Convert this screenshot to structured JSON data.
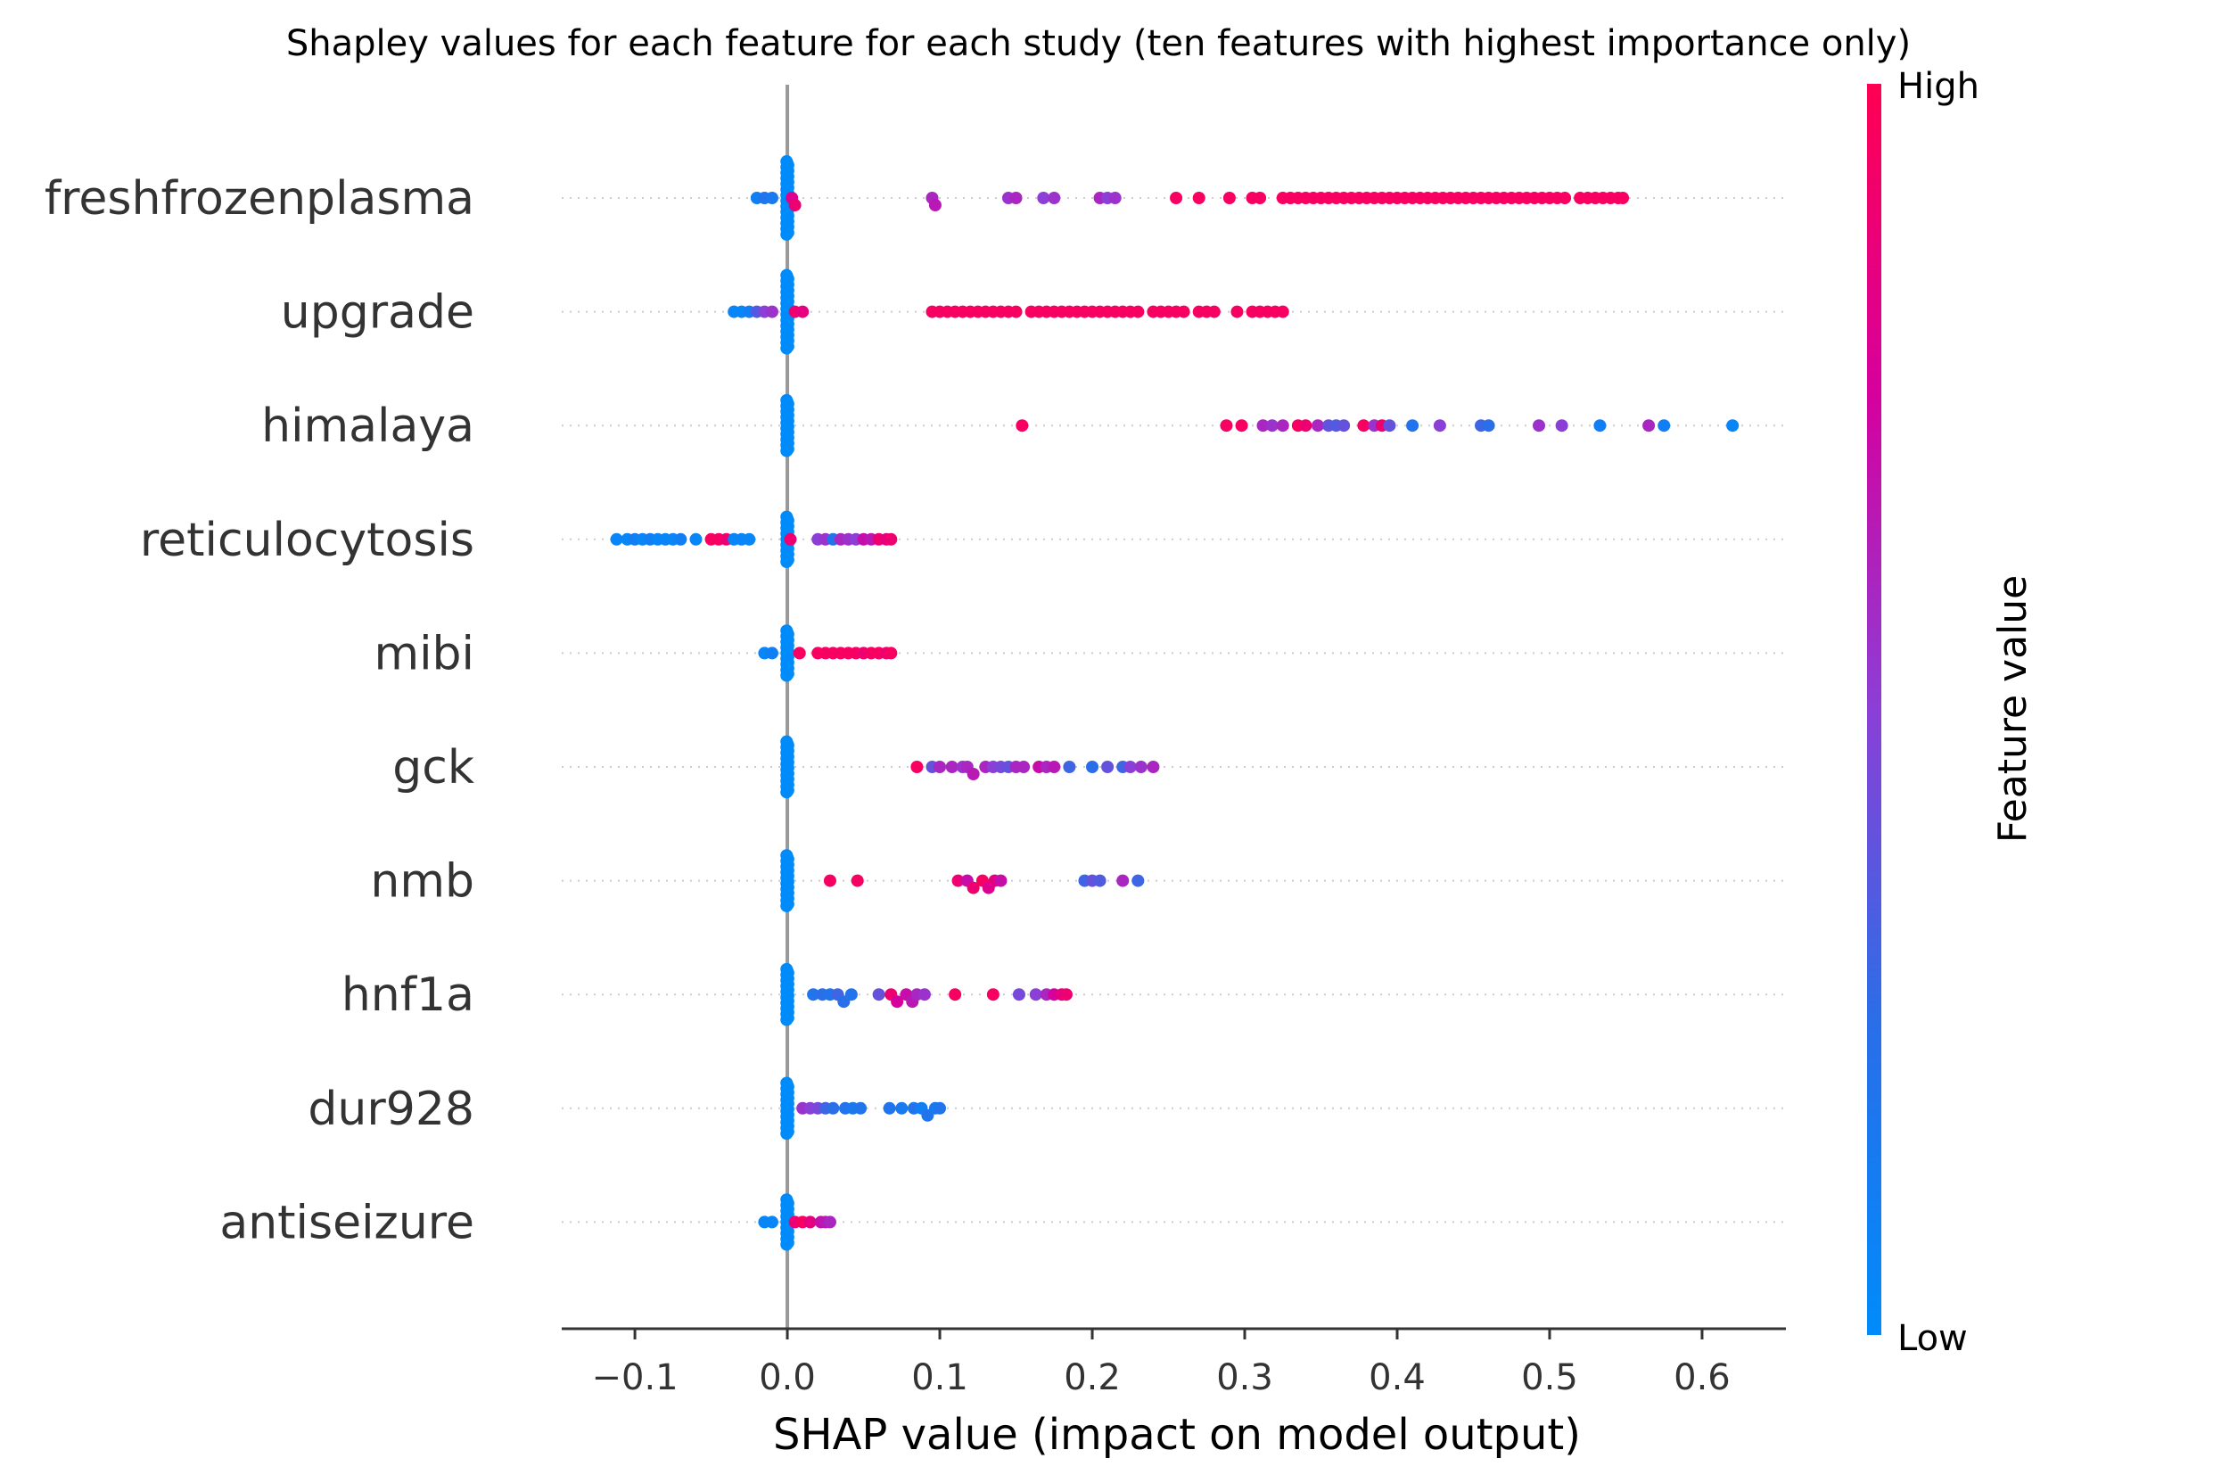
{
  "chart_data": {
    "type": "scatter",
    "subtype": "shap-beeswarm",
    "title": "Shapley values for each feature for each study (ten features with highest importance only)",
    "xlabel": "SHAP value (impact on model output)",
    "ylabel": "",
    "xlim": [
      -0.148,
      0.655
    ],
    "xticks": [
      -0.1,
      0.0,
      0.1,
      0.2,
      0.3,
      0.4,
      0.5,
      0.6
    ],
    "xtick_labels": [
      "−0.1",
      "0.0",
      "0.1",
      "0.2",
      "0.3",
      "0.4",
      "0.5",
      "0.6"
    ],
    "grid": false,
    "colorbar": {
      "label": "Feature value",
      "high_label": "High",
      "low_label": "Low",
      "low_color": "#008bfb",
      "high_color": "#ff0052"
    },
    "features": [
      {
        "name": "freshfrozenplasma",
        "zero_low_count": 40,
        "points": [
          [
            -0.02,
            0.1
          ],
          [
            -0.015,
            0.2
          ],
          [
            -0.01,
            0.15
          ],
          [
            0.003,
            0.8
          ],
          [
            0.005,
            0.9
          ],
          [
            0.095,
            0.6
          ],
          [
            0.097,
            0.65
          ],
          [
            0.145,
            0.55
          ],
          [
            0.15,
            0.6
          ],
          [
            0.168,
            0.5
          ],
          [
            0.175,
            0.55
          ],
          [
            0.205,
            0.6
          ],
          [
            0.21,
            0.5
          ],
          [
            0.215,
            0.55
          ],
          [
            0.255,
            0.95
          ],
          [
            0.27,
            0.95
          ],
          [
            0.29,
            0.95
          ],
          [
            0.305,
            0.95
          ],
          [
            0.31,
            0.95
          ],
          [
            0.325,
            0.95
          ],
          [
            0.33,
            0.95
          ],
          [
            0.335,
            0.95
          ],
          [
            0.34,
            0.95
          ],
          [
            0.345,
            0.95
          ],
          [
            0.35,
            0.95
          ],
          [
            0.355,
            0.95
          ],
          [
            0.36,
            0.95
          ],
          [
            0.365,
            0.95
          ],
          [
            0.37,
            0.95
          ],
          [
            0.375,
            0.95
          ],
          [
            0.38,
            0.95
          ],
          [
            0.385,
            0.95
          ],
          [
            0.39,
            0.95
          ],
          [
            0.395,
            0.95
          ],
          [
            0.4,
            0.95
          ],
          [
            0.405,
            0.95
          ],
          [
            0.41,
            0.95
          ],
          [
            0.415,
            0.95
          ],
          [
            0.42,
            0.95
          ],
          [
            0.425,
            0.95
          ],
          [
            0.43,
            0.95
          ],
          [
            0.435,
            0.95
          ],
          [
            0.44,
            0.95
          ],
          [
            0.445,
            0.95
          ],
          [
            0.45,
            0.95
          ],
          [
            0.455,
            0.95
          ],
          [
            0.46,
            0.95
          ],
          [
            0.465,
            0.95
          ],
          [
            0.47,
            0.95
          ],
          [
            0.475,
            0.95
          ],
          [
            0.48,
            0.95
          ],
          [
            0.485,
            0.95
          ],
          [
            0.49,
            0.95
          ],
          [
            0.495,
            0.95
          ],
          [
            0.5,
            0.95
          ],
          [
            0.505,
            0.95
          ],
          [
            0.51,
            0.95
          ],
          [
            0.52,
            0.95
          ],
          [
            0.525,
            0.95
          ],
          [
            0.53,
            0.95
          ],
          [
            0.535,
            0.95
          ],
          [
            0.54,
            0.95
          ],
          [
            0.545,
            0.95
          ],
          [
            0.548,
            0.95
          ]
        ]
      },
      {
        "name": "upgrade",
        "zero_low_count": 40,
        "points": [
          [
            -0.035,
            0.05
          ],
          [
            -0.03,
            0.05
          ],
          [
            -0.025,
            0.1
          ],
          [
            -0.02,
            0.35
          ],
          [
            -0.015,
            0.5
          ],
          [
            -0.01,
            0.55
          ],
          [
            0.005,
            0.9
          ],
          [
            0.01,
            0.85
          ],
          [
            0.095,
            0.95
          ],
          [
            0.1,
            0.95
          ],
          [
            0.105,
            0.95
          ],
          [
            0.11,
            0.95
          ],
          [
            0.115,
            0.95
          ],
          [
            0.12,
            0.95
          ],
          [
            0.125,
            0.95
          ],
          [
            0.13,
            0.95
          ],
          [
            0.135,
            0.95
          ],
          [
            0.14,
            0.95
          ],
          [
            0.145,
            0.95
          ],
          [
            0.15,
            0.95
          ],
          [
            0.16,
            0.95
          ],
          [
            0.165,
            0.95
          ],
          [
            0.17,
            0.95
          ],
          [
            0.175,
            0.95
          ],
          [
            0.18,
            0.95
          ],
          [
            0.185,
            0.95
          ],
          [
            0.19,
            0.95
          ],
          [
            0.195,
            0.95
          ],
          [
            0.2,
            0.95
          ],
          [
            0.205,
            0.95
          ],
          [
            0.21,
            0.95
          ],
          [
            0.215,
            0.95
          ],
          [
            0.22,
            0.95
          ],
          [
            0.225,
            0.95
          ],
          [
            0.23,
            0.95
          ],
          [
            0.24,
            0.95
          ],
          [
            0.245,
            0.95
          ],
          [
            0.25,
            0.95
          ],
          [
            0.255,
            0.95
          ],
          [
            0.26,
            0.95
          ],
          [
            0.27,
            0.95
          ],
          [
            0.275,
            0.95
          ],
          [
            0.28,
            0.95
          ],
          [
            0.295,
            0.95
          ],
          [
            0.305,
            0.95
          ],
          [
            0.31,
            0.95
          ],
          [
            0.315,
            0.95
          ],
          [
            0.32,
            0.95
          ],
          [
            0.325,
            0.95
          ]
        ]
      },
      {
        "name": "himalaya",
        "zero_low_count": 28,
        "points": [
          [
            0.154,
            0.95
          ],
          [
            0.288,
            0.95
          ],
          [
            0.298,
            0.95
          ],
          [
            0.312,
            0.6
          ],
          [
            0.318,
            0.55
          ],
          [
            0.325,
            0.6
          ],
          [
            0.335,
            0.95
          ],
          [
            0.34,
            0.9
          ],
          [
            0.348,
            0.6
          ],
          [
            0.355,
            0.4
          ],
          [
            0.36,
            0.35
          ],
          [
            0.365,
            0.4
          ],
          [
            0.378,
            0.95
          ],
          [
            0.385,
            0.55
          ],
          [
            0.39,
            0.9
          ],
          [
            0.395,
            0.4
          ],
          [
            0.41,
            0.2
          ],
          [
            0.428,
            0.5
          ],
          [
            0.455,
            0.3
          ],
          [
            0.46,
            0.25
          ],
          [
            0.493,
            0.55
          ],
          [
            0.508,
            0.5
          ],
          [
            0.533,
            0.1
          ],
          [
            0.565,
            0.6
          ],
          [
            0.575,
            0.1
          ],
          [
            0.62,
            0.05
          ]
        ]
      },
      {
        "name": "reticulocytosis",
        "zero_low_count": 25,
        "points": [
          [
            -0.112,
            0.05
          ],
          [
            -0.105,
            0.05
          ],
          [
            -0.1,
            0.1
          ],
          [
            -0.095,
            0.05
          ],
          [
            -0.09,
            0.1
          ],
          [
            -0.085,
            0.05
          ],
          [
            -0.08,
            0.05
          ],
          [
            -0.075,
            0.05
          ],
          [
            -0.07,
            0.1
          ],
          [
            -0.06,
            0.05
          ],
          [
            -0.05,
            0.95
          ],
          [
            -0.045,
            0.95
          ],
          [
            -0.04,
            0.9
          ],
          [
            -0.035,
            0.05
          ],
          [
            -0.03,
            0.05
          ],
          [
            -0.025,
            0.05
          ],
          [
            0.002,
            0.9
          ],
          [
            0.02,
            0.5
          ],
          [
            0.025,
            0.55
          ],
          [
            0.03,
            0.2
          ],
          [
            0.035,
            0.6
          ],
          [
            0.04,
            0.55
          ],
          [
            0.045,
            0.5
          ],
          [
            0.05,
            0.7
          ],
          [
            0.055,
            0.65
          ],
          [
            0.06,
            0.9
          ],
          [
            0.065,
            0.85
          ],
          [
            0.068,
            0.9
          ]
        ]
      },
      {
        "name": "mibi",
        "zero_low_count": 25,
        "points": [
          [
            -0.015,
            0.05
          ],
          [
            -0.01,
            0.1
          ],
          [
            0.008,
            0.95
          ],
          [
            0.02,
            0.95
          ],
          [
            0.025,
            0.95
          ],
          [
            0.03,
            0.95
          ],
          [
            0.035,
            0.95
          ],
          [
            0.04,
            0.95
          ],
          [
            0.045,
            0.95
          ],
          [
            0.05,
            0.9
          ],
          [
            0.055,
            0.95
          ],
          [
            0.06,
            0.95
          ],
          [
            0.065,
            0.9
          ],
          [
            0.068,
            0.95
          ]
        ]
      },
      {
        "name": "gck",
        "zero_low_count": 28,
        "points": [
          [
            0.085,
            0.95
          ],
          [
            0.095,
            0.4
          ],
          [
            0.1,
            0.6
          ],
          [
            0.108,
            0.6
          ],
          [
            0.115,
            0.55
          ],
          [
            0.118,
            0.6
          ],
          [
            0.122,
            0.65
          ],
          [
            0.13,
            0.6
          ],
          [
            0.135,
            0.5
          ],
          [
            0.14,
            0.45
          ],
          [
            0.145,
            0.4
          ],
          [
            0.15,
            0.6
          ],
          [
            0.155,
            0.6
          ],
          [
            0.165,
            0.7
          ],
          [
            0.17,
            0.6
          ],
          [
            0.175,
            0.65
          ],
          [
            0.185,
            0.3
          ],
          [
            0.2,
            0.25
          ],
          [
            0.21,
            0.4
          ],
          [
            0.22,
            0.3
          ],
          [
            0.225,
            0.5
          ],
          [
            0.232,
            0.55
          ],
          [
            0.24,
            0.6
          ]
        ]
      },
      {
        "name": "nmb",
        "zero_low_count": 28,
        "points": [
          [
            0.028,
            0.95
          ],
          [
            0.046,
            0.95
          ],
          [
            0.112,
            0.9
          ],
          [
            0.118,
            0.7
          ],
          [
            0.122,
            0.9
          ],
          [
            0.128,
            0.95
          ],
          [
            0.132,
            0.8
          ],
          [
            0.136,
            0.85
          ],
          [
            0.14,
            0.7
          ],
          [
            0.195,
            0.3
          ],
          [
            0.2,
            0.4
          ],
          [
            0.205,
            0.35
          ],
          [
            0.22,
            0.6
          ],
          [
            0.23,
            0.3
          ]
        ]
      },
      {
        "name": "hnf1a",
        "zero_low_count": 28,
        "points": [
          [
            0.017,
            0.2
          ],
          [
            0.023,
            0.25
          ],
          [
            0.028,
            0.2
          ],
          [
            0.033,
            0.3
          ],
          [
            0.037,
            0.25
          ],
          [
            0.042,
            0.2
          ],
          [
            0.06,
            0.4
          ],
          [
            0.068,
            0.9
          ],
          [
            0.072,
            0.75
          ],
          [
            0.078,
            0.7
          ],
          [
            0.082,
            0.65
          ],
          [
            0.085,
            0.6
          ],
          [
            0.09,
            0.55
          ],
          [
            0.11,
            0.95
          ],
          [
            0.135,
            0.95
          ],
          [
            0.152,
            0.45
          ],
          [
            0.163,
            0.5
          ],
          [
            0.17,
            0.6
          ],
          [
            0.175,
            0.75
          ],
          [
            0.18,
            0.85
          ],
          [
            0.183,
            0.9
          ]
        ]
      },
      {
        "name": "dur928",
        "zero_low_count": 28,
        "points": [
          [
            0.01,
            0.55
          ],
          [
            0.015,
            0.5
          ],
          [
            0.02,
            0.45
          ],
          [
            0.025,
            0.3
          ],
          [
            0.03,
            0.25
          ],
          [
            0.038,
            0.2
          ],
          [
            0.043,
            0.15
          ],
          [
            0.048,
            0.2
          ],
          [
            0.067,
            0.2
          ],
          [
            0.075,
            0.15
          ],
          [
            0.083,
            0.2
          ],
          [
            0.088,
            0.1
          ],
          [
            0.092,
            0.2
          ],
          [
            0.097,
            0.15
          ],
          [
            0.1,
            0.2
          ]
        ]
      },
      {
        "name": "antiseizure",
        "zero_low_count": 25,
        "points": [
          [
            -0.015,
            0.05
          ],
          [
            -0.01,
            0.05
          ],
          [
            0.005,
            0.9
          ],
          [
            0.01,
            0.95
          ],
          [
            0.015,
            0.85
          ],
          [
            0.022,
            0.7
          ],
          [
            0.025,
            0.65
          ],
          [
            0.028,
            0.6
          ]
        ]
      }
    ]
  }
}
